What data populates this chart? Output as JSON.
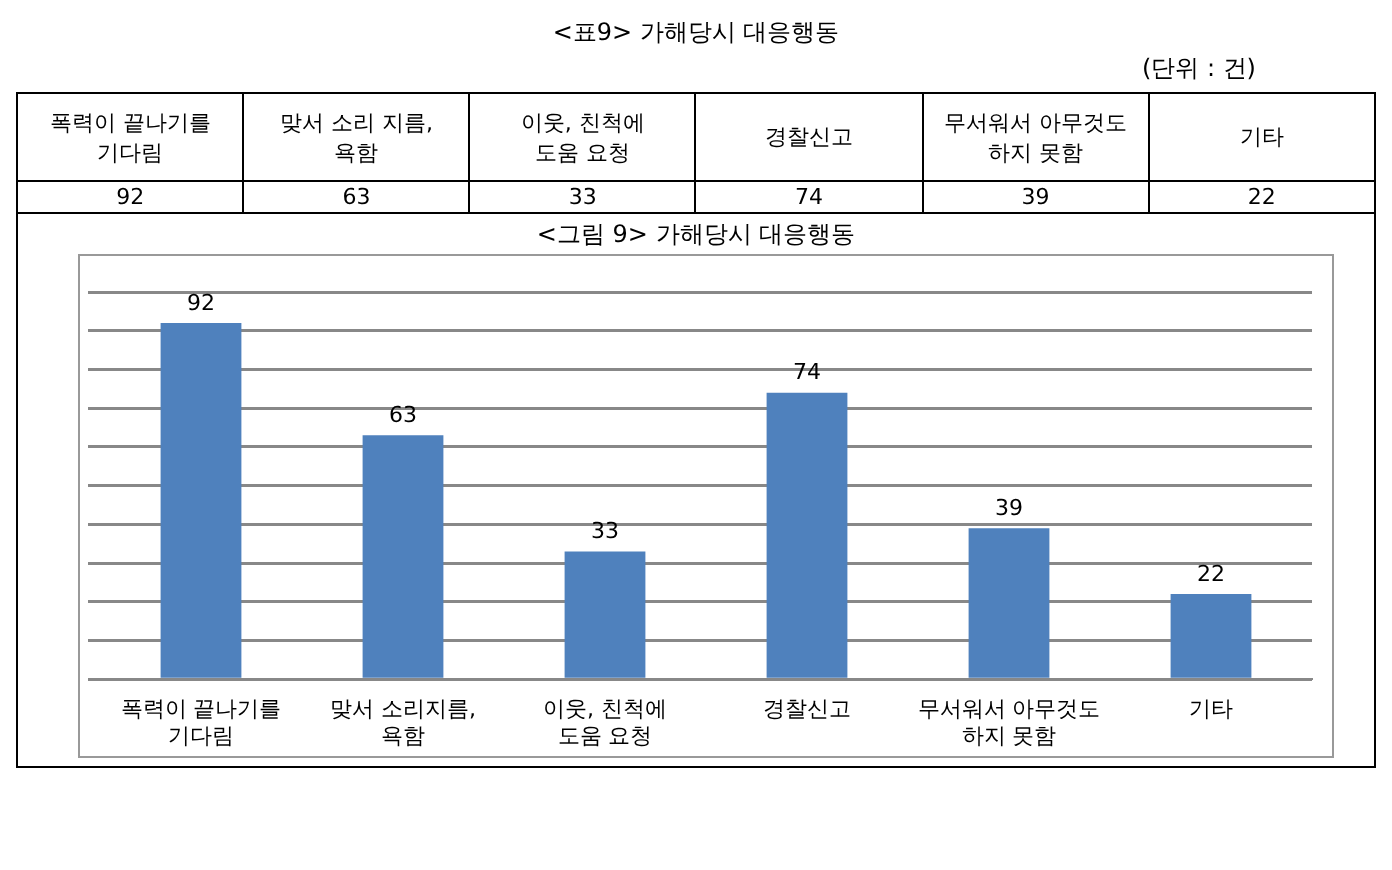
{
  "chart_data": {
    "type": "bar",
    "title": "<그림 9> 가해당시 대응행동",
    "annotations": [
      "<표9> 가해당시 대응행동",
      "(단위 : 건)",
      "폭력이 끝나기를 기다림",
      "맞서 소리 지름, 욕함",
      "이웃, 친척에 도움 요청",
      "경찰신고",
      "무서워서 아무것도 하지 못함",
      "기타",
      "92",
      "63",
      "33",
      "74",
      "39",
      "22"
    ],
    "categories": [
      "폭력이 끝나기를 기다림",
      "맞서 소리지름, 욕함",
      "이웃, 친척에 도움 요청",
      "경찰신고",
      "무서워서 아무것도 하지 못함",
      "기타"
    ],
    "values": [
      92,
      63,
      33,
      74,
      39,
      22
    ],
    "color": "#4f81bd",
    "ylim": [
      0,
      100
    ],
    "yticks": [
      {
        "value": 0,
        "label": null
      },
      {
        "value": 10,
        "label": null
      },
      {
        "value": 20,
        "label": null
      },
      {
        "value": 30,
        "label": null
      },
      {
        "value": 40,
        "label": null
      },
      {
        "value": 50,
        "label": null
      },
      {
        "value": 60,
        "label": null
      },
      {
        "value": 70,
        "label": null
      },
      {
        "value": 80,
        "label": null
      },
      {
        "value": 90,
        "label": null
      },
      {
        "value": 100,
        "label": null
      }
    ],
    "tick_labels": "x",
    "grid": "y",
    "data_labels": true,
    "legend": false
  }
}
